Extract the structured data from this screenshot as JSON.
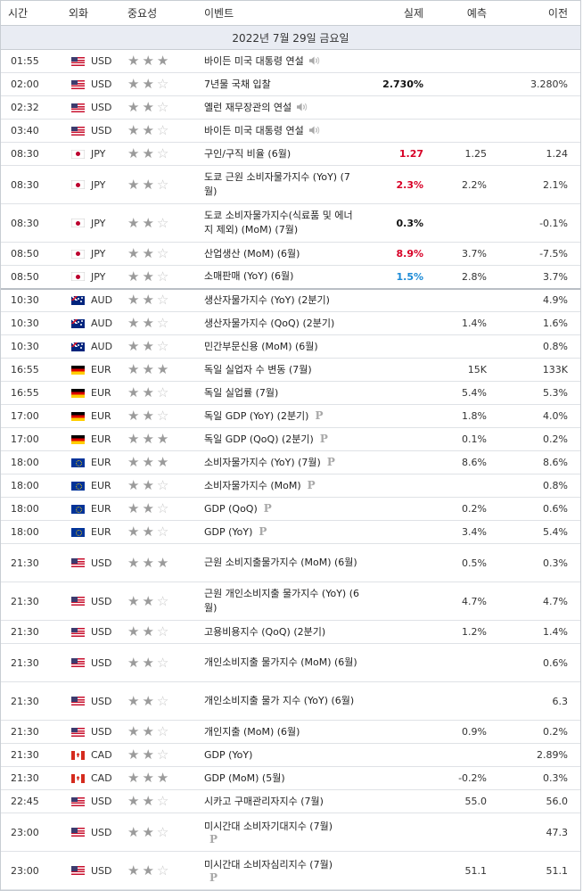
{
  "header": {
    "time": "시간",
    "currency": "외화",
    "importance": "중요성",
    "event": "이벤트",
    "actual": "실제",
    "forecast": "예측",
    "previous": "이전"
  },
  "date_label": "2022년 7월 29일 금요일",
  "colors": {
    "actual_up": "#d80027",
    "actual_down": "#1a8ad6",
    "actual_neutral": "#111111",
    "star_on": "#9b9b9b",
    "star_off": "#c8c8c8"
  },
  "rows": [
    {
      "time": "01:55",
      "flag": "US",
      "cur": "USD",
      "stars": 3,
      "event": "바이든 미국 대통령 연설",
      "icon": "speaker-icon",
      "actual": "",
      "color": "",
      "forecast": "",
      "previous": "",
      "height": 26
    },
    {
      "time": "02:00",
      "flag": "US",
      "cur": "USD",
      "stars": 2,
      "event": "7년물 국채 입찰",
      "icon": "",
      "actual": "2.730%",
      "color": "black",
      "forecast": "",
      "previous": "3.280%",
      "height": 26
    },
    {
      "time": "02:32",
      "flag": "US",
      "cur": "USD",
      "stars": 2,
      "event": "옐런 재무장관의 연설",
      "icon": "speaker-icon",
      "actual": "",
      "color": "",
      "forecast": "",
      "previous": "",
      "height": 26
    },
    {
      "time": "03:40",
      "flag": "US",
      "cur": "USD",
      "stars": 2,
      "event": "바이든 미국 대통령 연설",
      "icon": "speaker-icon",
      "actual": "",
      "color": "",
      "forecast": "",
      "previous": "",
      "height": 26
    },
    {
      "time": "08:30",
      "flag": "JP",
      "cur": "JPY",
      "stars": 2,
      "event": "구인/구직 비율 (6월)",
      "icon": "",
      "actual": "1.27",
      "color": "red",
      "forecast": "1.25",
      "previous": "1.24",
      "height": 26
    },
    {
      "time": "08:30",
      "flag": "JP",
      "cur": "JPY",
      "stars": 2,
      "event": "도쿄 근원 소비자물가지수 (YoY) (7월)",
      "icon": "",
      "actual": "2.3%",
      "color": "red",
      "forecast": "2.2%",
      "previous": "2.1%",
      "height": 43
    },
    {
      "time": "08:30",
      "flag": "JP",
      "cur": "JPY",
      "stars": 2,
      "event": "도쿄 소비자물가지수(식료품 및 에너지 제외) (MoM) (7월)",
      "icon": "",
      "actual": "0.3%",
      "color": "black",
      "forecast": "",
      "previous": "-0.1%",
      "height": 43
    },
    {
      "time": "08:50",
      "flag": "JP",
      "cur": "JPY",
      "stars": 2,
      "event": "산업생산 (MoM) (6월)",
      "icon": "",
      "actual": "8.9%",
      "color": "red",
      "forecast": "3.7%",
      "previous": "-7.5%",
      "height": 26
    },
    {
      "time": "08:50",
      "flag": "JP",
      "cur": "JPY",
      "stars": 2,
      "event": "소매판매 (YoY) (6월)",
      "icon": "",
      "actual": "1.5%",
      "color": "blue",
      "forecast": "2.8%",
      "previous": "3.7%",
      "height": 26,
      "sep": true
    },
    {
      "time": "10:30",
      "flag": "AU",
      "cur": "AUD",
      "stars": 2,
      "event": "생산자물가지수 (YoY) (2분기)",
      "icon": "",
      "actual": "",
      "color": "",
      "forecast": "",
      "previous": "4.9%",
      "height": 26
    },
    {
      "time": "10:30",
      "flag": "AU",
      "cur": "AUD",
      "stars": 2,
      "event": "생산자물가지수 (QoQ) (2분기)",
      "icon": "",
      "actual": "",
      "color": "",
      "forecast": "1.4%",
      "previous": "1.6%",
      "height": 26
    },
    {
      "time": "10:30",
      "flag": "AU",
      "cur": "AUD",
      "stars": 2,
      "event": "민간부문신용 (MoM) (6월)",
      "icon": "",
      "actual": "",
      "color": "",
      "forecast": "",
      "previous": "0.8%",
      "height": 26
    },
    {
      "time": "16:55",
      "flag": "DE",
      "cur": "EUR",
      "stars": 3,
      "event": "독일 실업자 수 변동 (7월)",
      "icon": "",
      "actual": "",
      "color": "",
      "forecast": "15K",
      "previous": "133K",
      "height": 26
    },
    {
      "time": "16:55",
      "flag": "DE",
      "cur": "EUR",
      "stars": 2,
      "event": "독일 실업률 (7월)",
      "icon": "",
      "actual": "",
      "color": "",
      "forecast": "5.4%",
      "previous": "5.3%",
      "height": 26
    },
    {
      "time": "17:00",
      "flag": "DE",
      "cur": "EUR",
      "stars": 2,
      "event": "독일 GDP (YoY) (2분기)",
      "icon": "p-icon",
      "actual": "",
      "color": "",
      "forecast": "1.8%",
      "previous": "4.0%",
      "height": 26
    },
    {
      "time": "17:00",
      "flag": "DE",
      "cur": "EUR",
      "stars": 3,
      "event": "독일 GDP (QoQ) (2분기)",
      "icon": "p-icon",
      "actual": "",
      "color": "",
      "forecast": "0.1%",
      "previous": "0.2%",
      "height": 26
    },
    {
      "time": "18:00",
      "flag": "EU",
      "cur": "EUR",
      "stars": 3,
      "event": "소비자물가지수 (YoY) (7월)",
      "icon": "p-icon",
      "actual": "",
      "color": "",
      "forecast": "8.6%",
      "previous": "8.6%",
      "height": 26
    },
    {
      "time": "18:00",
      "flag": "EU",
      "cur": "EUR",
      "stars": 2,
      "event": "소비자물가지수 (MoM)",
      "icon": "p-icon",
      "actual": "",
      "color": "",
      "forecast": "",
      "previous": "0.8%",
      "height": 26
    },
    {
      "time": "18:00",
      "flag": "EU",
      "cur": "EUR",
      "stars": 2,
      "event": "GDP (QoQ)",
      "icon": "p-icon",
      "actual": "",
      "color": "",
      "forecast": "0.2%",
      "previous": "0.6%",
      "height": 26
    },
    {
      "time": "18:00",
      "flag": "EU",
      "cur": "EUR",
      "stars": 2,
      "event": "GDP (YoY)",
      "icon": "p-icon",
      "actual": "",
      "color": "",
      "forecast": "3.4%",
      "previous": "5.4%",
      "height": 26
    },
    {
      "time": "21:30",
      "flag": "US",
      "cur": "USD",
      "stars": 3,
      "event": "근원 소비지출물가지수 (MoM) (6월)",
      "icon": "",
      "actual": "",
      "color": "",
      "forecast": "0.5%",
      "previous": "0.3%",
      "height": 43
    },
    {
      "time": "21:30",
      "flag": "US",
      "cur": "USD",
      "stars": 2,
      "event": "근원 개인소비지출 물가지수 (YoY) (6월)",
      "icon": "",
      "actual": "",
      "color": "",
      "forecast": "4.7%",
      "previous": "4.7%",
      "height": 43
    },
    {
      "time": "21:30",
      "flag": "US",
      "cur": "USD",
      "stars": 2,
      "event": "고용비용지수 (QoQ) (2분기)",
      "icon": "",
      "actual": "",
      "color": "",
      "forecast": "1.2%",
      "previous": "1.4%",
      "height": 26
    },
    {
      "time": "21:30",
      "flag": "US",
      "cur": "USD",
      "stars": 2,
      "event": "개인소비지출 물가지수 (MoM) (6월)",
      "icon": "",
      "actual": "",
      "color": "",
      "forecast": "",
      "previous": "0.6%",
      "height": 43
    },
    {
      "time": "21:30",
      "flag": "US",
      "cur": "USD",
      "stars": 2,
      "event": "개인소비지출 물가 지수 (YoY) (6월)",
      "icon": "",
      "actual": "",
      "color": "",
      "forecast": "",
      "previous": "6.3",
      "height": 43
    },
    {
      "time": "21:30",
      "flag": "US",
      "cur": "USD",
      "stars": 2,
      "event": "개인지출 (MoM) (6월)",
      "icon": "",
      "actual": "",
      "color": "",
      "forecast": "0.9%",
      "previous": "0.2%",
      "height": 26
    },
    {
      "time": "21:30",
      "flag": "CA",
      "cur": "CAD",
      "stars": 2,
      "event": "GDP (YoY)",
      "icon": "",
      "actual": "",
      "color": "",
      "forecast": "",
      "previous": "2.89%",
      "height": 26
    },
    {
      "time": "21:30",
      "flag": "CA",
      "cur": "CAD",
      "stars": 3,
      "event": "GDP (MoM) (5월)",
      "icon": "",
      "actual": "",
      "color": "",
      "forecast": "-0.2%",
      "previous": "0.3%",
      "height": 26
    },
    {
      "time": "22:45",
      "flag": "US",
      "cur": "USD",
      "stars": 2,
      "event": "시카고 구매관리자지수 (7월)",
      "icon": "",
      "actual": "",
      "color": "",
      "forecast": "55.0",
      "previous": "56.0",
      "height": 26
    },
    {
      "time": "23:00",
      "flag": "US",
      "cur": "USD",
      "stars": 2,
      "event": "미시간대 소비자기대지수 (7월)",
      "icon": "p-icon-below",
      "actual": "",
      "color": "",
      "forecast": "",
      "previous": "47.3",
      "height": 43
    },
    {
      "time": "23:00",
      "flag": "US",
      "cur": "USD",
      "stars": 2,
      "event": "미시간대 소비자심리지수 (7월)",
      "icon": "p-icon-below",
      "actual": "",
      "color": "",
      "forecast": "51.1",
      "previous": "51.1",
      "height": 43
    }
  ]
}
